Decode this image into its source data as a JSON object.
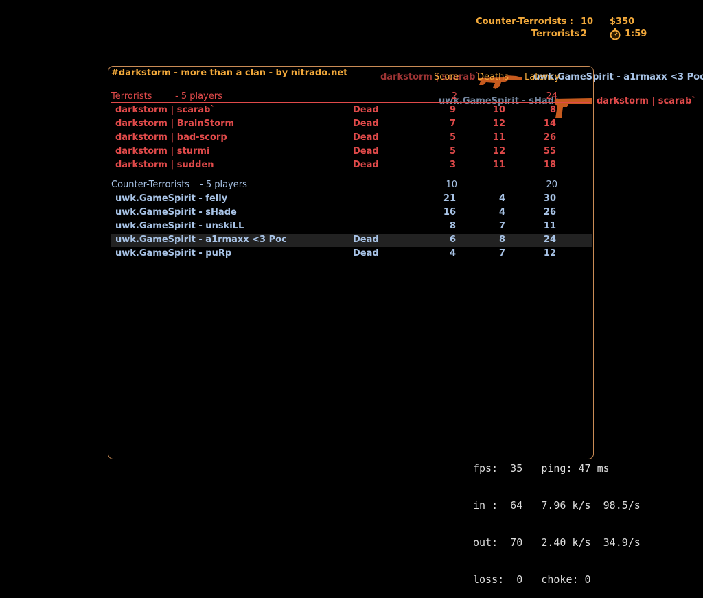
{
  "hud": {
    "ct_label": "Counter-Terrorists :",
    "ct_score": "10",
    "t_label": "Terrorists :",
    "t_score": "2",
    "money": "$350",
    "timer": "1:59"
  },
  "killfeed": [
    {
      "killer": "darkstorm | scarab`",
      "victim": "uwk.GameSpirit - a1rmaxx <3 Poc",
      "weapon": "rifle-icon"
    },
    {
      "killer": "uwk.GameSpirit - sHade",
      "victim": "darkstorm | scarab`",
      "weapon": "pistol-icon"
    }
  ],
  "scoreboard": {
    "title": "#darkstorm - more than a clan - by nitrado.net",
    "columns": {
      "score": "Score",
      "deaths": "Deaths",
      "latency": "Latency"
    },
    "teams": [
      {
        "name": "Terrorists",
        "players_label": "-   5 players",
        "score": "2",
        "latency": "24",
        "players": [
          {
            "name": "darkstorm | scarab`",
            "status": "Dead",
            "score": "9",
            "deaths": "10",
            "latency": "8"
          },
          {
            "name": "darkstorm | BrainStorm",
            "status": "Dead",
            "score": "7",
            "deaths": "12",
            "latency": "14"
          },
          {
            "name": "darkstorm | bad-scorp",
            "status": "Dead",
            "score": "5",
            "deaths": "11",
            "latency": "26"
          },
          {
            "name": "darkstorm | sturmi",
            "status": "Dead",
            "score": "5",
            "deaths": "12",
            "latency": "55"
          },
          {
            "name": "darkstorm | sudden",
            "status": "Dead",
            "score": "3",
            "deaths": "11",
            "latency": "18"
          }
        ]
      },
      {
        "name": "Counter-Terrorists",
        "players_label": "-   5 players",
        "score": "10",
        "latency": "20",
        "players": [
          {
            "name": "uwk.GameSpirit - felly",
            "status": "",
            "score": "21",
            "deaths": "4",
            "latency": "30"
          },
          {
            "name": "uwk.GameSpirit - sHade",
            "status": "",
            "score": "16",
            "deaths": "4",
            "latency": "26"
          },
          {
            "name": "uwk.GameSpirit - unskiLL",
            "status": "",
            "score": "8",
            "deaths": "7",
            "latency": "11"
          },
          {
            "name": "uwk.GameSpirit - a1rmaxx <3 Poc",
            "status": "Dead",
            "score": "6",
            "deaths": "8",
            "latency": "24",
            "highlighted": true
          },
          {
            "name": "uwk.GameSpirit - puRp",
            "status": "Dead",
            "score": "4",
            "deaths": "7",
            "latency": "12"
          }
        ]
      }
    ]
  },
  "netgraph": {
    "line1": "fps:  35   ping: 47 ms",
    "line2": "in :  64   7.96 k/s  98.5/s",
    "line3": "out:  70   2.40 k/s  34.9/s",
    "line4": "loss:  0   choke: 0"
  },
  "colors": {
    "accent": "#f2a93b",
    "terrorist": "#e04a4a",
    "counter_terrorist": "#a8c3e6",
    "border": "#c98b55"
  }
}
